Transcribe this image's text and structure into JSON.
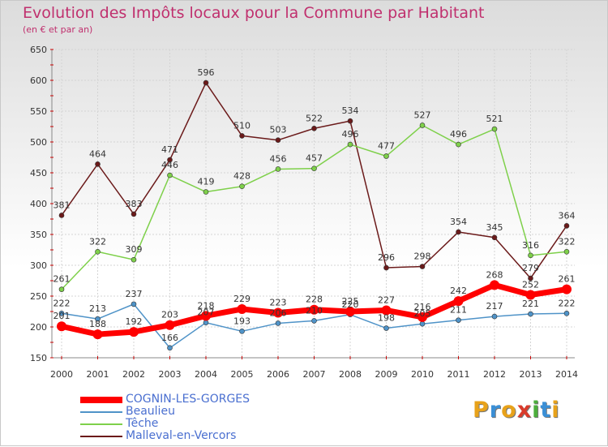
{
  "title": "Evolution des Impôts locaux pour la Commune par Habitant",
  "subtitle": "(en € et par an)",
  "logo": {
    "letters": [
      "P",
      "r",
      "o",
      "x",
      "i",
      "t",
      "i"
    ],
    "colors": [
      "#e8a21a",
      "#3a8fd6",
      "#e8a21a",
      "#d93b2b",
      "#4cae3c",
      "#3a8fd6",
      "#e8a21a"
    ]
  },
  "chart_data": {
    "type": "line",
    "title": "Evolution des Impôts locaux pour la Commune par Habitant",
    "subtitle": "(en € et par an)",
    "x": [
      "2000",
      "2001",
      "2002",
      "2003",
      "2004",
      "2005",
      "2006",
      "2007",
      "2008",
      "2009",
      "2010",
      "2011",
      "2012",
      "2013",
      "2014"
    ],
    "ylim": [
      150,
      650
    ],
    "yticks": [
      "150",
      "200",
      "250",
      "300",
      "350",
      "400",
      "450",
      "500",
      "550",
      "600",
      "650"
    ],
    "grid": true,
    "legend_position": "bottom-left",
    "series": [
      {
        "name": "COGNIN-LES-GORGES",
        "color": "#ff0000",
        "values": [
          201,
          188,
          192,
          203,
          218,
          229,
          223,
          228,
          225,
          227,
          216,
          242,
          268,
          252,
          261
        ]
      },
      {
        "name": "Beaulieu",
        "color": "#4f93c8",
        "values": [
          222,
          213,
          237,
          166,
          207,
          193,
          206,
          210,
          220,
          198,
          205,
          211,
          217,
          221,
          222
        ]
      },
      {
        "name": "Têche",
        "color": "#7ed04a",
        "values": [
          261,
          322,
          309,
          446,
          419,
          428,
          456,
          457,
          496,
          477,
          527,
          496,
          521,
          316,
          322
        ]
      },
      {
        "name": "Malleval-en-Vercors",
        "color": "#6b1a1a",
        "values": [
          381,
          464,
          383,
          471,
          596,
          510,
          503,
          522,
          534,
          296,
          298,
          354,
          345,
          279,
          364
        ]
      }
    ]
  }
}
